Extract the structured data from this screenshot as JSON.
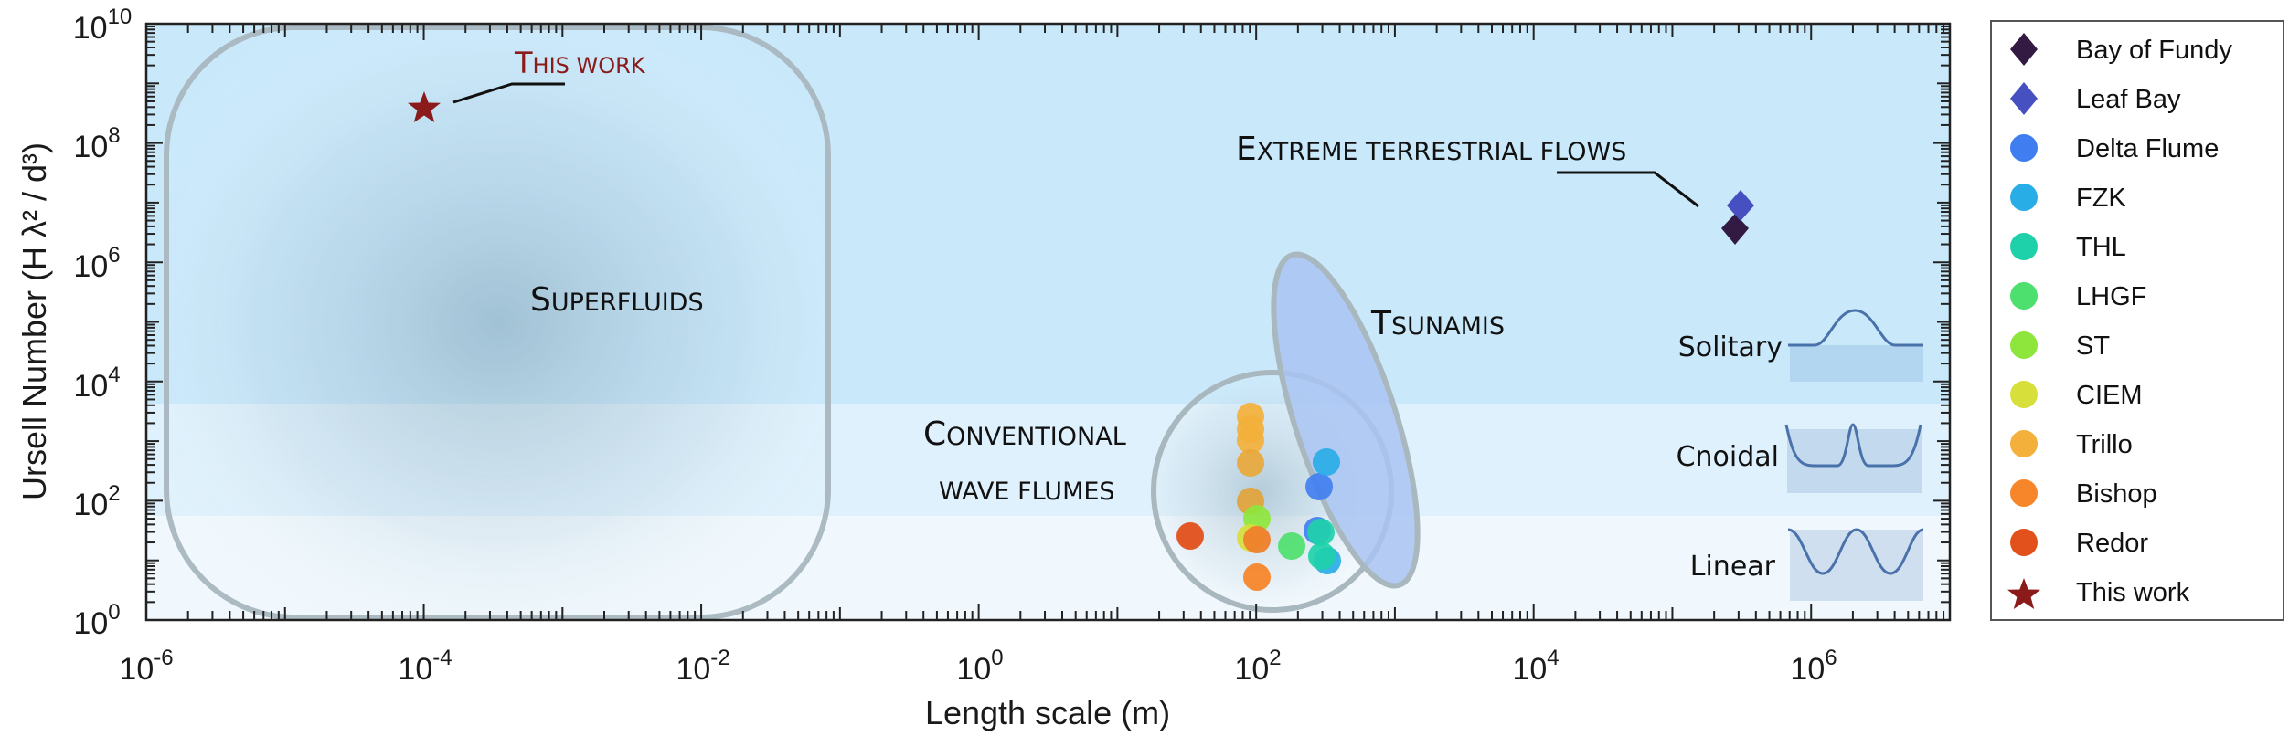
{
  "chart_data": {
    "type": "scatter",
    "title": "",
    "xlabel": "Length scale (m)",
    "ylabel": "Ursell Number (H λ² / d³)",
    "xscale": "log",
    "yscale": "log",
    "xlim": [
      1e-06,
      10000000.0
    ],
    "ylim": [
      1,
      10000000000.0
    ],
    "x_ticks": [
      {
        "base": "10",
        "exp": "-6",
        "value": 1e-06
      },
      {
        "base": "10",
        "exp": "-4",
        "value": 0.0001
      },
      {
        "base": "10",
        "exp": "-2",
        "value": 0.01
      },
      {
        "base": "10",
        "exp": "0",
        "value": 1
      },
      {
        "base": "10",
        "exp": "2",
        "value": 100
      },
      {
        "base": "10",
        "exp": "4",
        "value": 10000.0
      },
      {
        "base": "10",
        "exp": "6",
        "value": 1000000.0
      }
    ],
    "y_ticks": [
      {
        "base": "10",
        "exp": "0",
        "value": 1
      },
      {
        "base": "10",
        "exp": "2",
        "value": 100
      },
      {
        "base": "10",
        "exp": "4",
        "value": 10000.0
      },
      {
        "base": "10",
        "exp": "6",
        "value": 1000000.0
      },
      {
        "base": "10",
        "exp": "8",
        "value": 100000000.0
      },
      {
        "base": "10",
        "exp": "10",
        "value": 10000000000.0
      }
    ],
    "grid": false,
    "legend_position": "outside-right",
    "background_bands": [
      {
        "name": "Linear",
        "y_range": [
          1,
          50
        ],
        "color": "#f0f8fd"
      },
      {
        "name": "Cnoidal",
        "y_range": [
          50,
          3000
        ],
        "color": "#dff1fc"
      },
      {
        "name": "Solitary",
        "y_range": [
          3000,
          10000000000.0
        ],
        "color": "#c9e9fb"
      }
    ],
    "series": [
      {
        "name": "Bay of Fundy",
        "marker": "diamond",
        "color": "#331a42",
        "points": [
          [
            300000,
            4000000
          ]
        ]
      },
      {
        "name": "Leaf Bay",
        "marker": "diamond",
        "color": "#4650c0",
        "points": [
          [
            350000,
            9000000
          ]
        ]
      },
      {
        "name": "Delta Flume",
        "marker": "circle",
        "color": "#3f7df0",
        "points": [
          [
            280,
            180
          ],
          [
            300,
            25
          ]
        ]
      },
      {
        "name": "FZK",
        "marker": "circle",
        "color": "#29ade6",
        "points": [
          [
            350,
            450
          ],
          [
            330,
            10
          ]
        ]
      },
      {
        "name": "THL",
        "marker": "circle",
        "color": "#1fd1aa",
        "points": [
          [
            290,
            28
          ],
          [
            300,
            11
          ]
        ]
      },
      {
        "name": "LHGF",
        "marker": "circle",
        "color": "#4ee06e",
        "points": [
          [
            170,
            15
          ]
        ]
      },
      {
        "name": "ST",
        "marker": "circle",
        "color": "#8ee63c",
        "points": [
          [
            105,
            50
          ]
        ]
      },
      {
        "name": "CIEM",
        "marker": "circle",
        "color": "#d7df3a",
        "points": [
          [
            95,
            22
          ]
        ]
      },
      {
        "name": "Trillo",
        "marker": "circle",
        "color": "#f3b03a",
        "points": [
          [
            90,
            2200
          ],
          [
            90,
            1400
          ],
          [
            90,
            900
          ],
          [
            90,
            400
          ],
          [
            90,
            90
          ]
        ]
      },
      {
        "name": "Bishop",
        "marker": "circle",
        "color": "#f7862b",
        "points": [
          [
            100,
            22
          ],
          [
            100,
            5
          ]
        ]
      },
      {
        "name": "Redor",
        "marker": "circle",
        "color": "#e2501b",
        "points": [
          [
            33,
            22
          ]
        ]
      },
      {
        "name": "This work",
        "marker": "star",
        "color": "#8b1a1a",
        "points": [
          [
            0.0001,
            350000000
          ]
        ]
      }
    ],
    "regions": [
      {
        "name": "Superfluids",
        "shape": "rounded-rect",
        "x_range": [
          5e-06,
          0.08
        ],
        "y_range": [
          1.2,
          8000000000.0
        ]
      },
      {
        "name": "Conventional wave flumes",
        "shape": "circle",
        "center": [
          110,
          130
        ]
      },
      {
        "name": "Tsunamis",
        "shape": "tilted-ellipse",
        "color": "#a9c4f2"
      },
      {
        "name": "Extreme terrestrial flows",
        "shape": "annotation"
      }
    ],
    "annotations": [
      {
        "text": "This work",
        "color": "#8b1a1a"
      },
      {
        "text": "Superfluids"
      },
      {
        "text": "Tsunamis"
      },
      {
        "text": "Conventional wave flumes"
      },
      {
        "text": "Extreme terrestrial flows"
      },
      {
        "text": "Solitary"
      },
      {
        "text": "Cnoidal"
      },
      {
        "text": "Linear"
      }
    ]
  },
  "labels": {
    "this_work_first": "T",
    "this_work_rest": "HIS WORK",
    "superfluids_first": "S",
    "superfluids_rest": "UPERFLUIDS",
    "tsunamis_first": "T",
    "tsunamis_rest": "SUNAMIS",
    "conventional_first": "C",
    "conventional_rest": "ONVENTIONAL",
    "conventional_line2": "WAVE FLUMES",
    "extreme_first": "E",
    "extreme_rest": "XTREME TERRESTRIAL FLOWS",
    "solitary": "Solitary",
    "cnoidal": "Cnoidal",
    "linear": "Linear"
  },
  "legend": {
    "items": [
      {
        "label": "Bay of Fundy",
        "marker": "diamond",
        "color": "#331a42"
      },
      {
        "label": "Leaf Bay",
        "marker": "diamond",
        "color": "#4650c0"
      },
      {
        "label": "Delta Flume",
        "marker": "circle",
        "color": "#3f7df0"
      },
      {
        "label": "FZK",
        "marker": "circle",
        "color": "#29ade6"
      },
      {
        "label": "THL",
        "marker": "circle",
        "color": "#1fd1aa"
      },
      {
        "label": "LHGF",
        "marker": "circle",
        "color": "#4ee06e"
      },
      {
        "label": "ST",
        "marker": "circle",
        "color": "#8ee63c"
      },
      {
        "label": "CIEM",
        "marker": "circle",
        "color": "#d7df3a"
      },
      {
        "label": "Trillo",
        "marker": "circle",
        "color": "#f3b03a"
      },
      {
        "label": "Bishop",
        "marker": "circle",
        "color": "#f7862b"
      },
      {
        "label": "Redor",
        "marker": "circle",
        "color": "#e2501b"
      },
      {
        "label": "This work",
        "marker": "star",
        "color": "#8b1a1a"
      }
    ]
  }
}
